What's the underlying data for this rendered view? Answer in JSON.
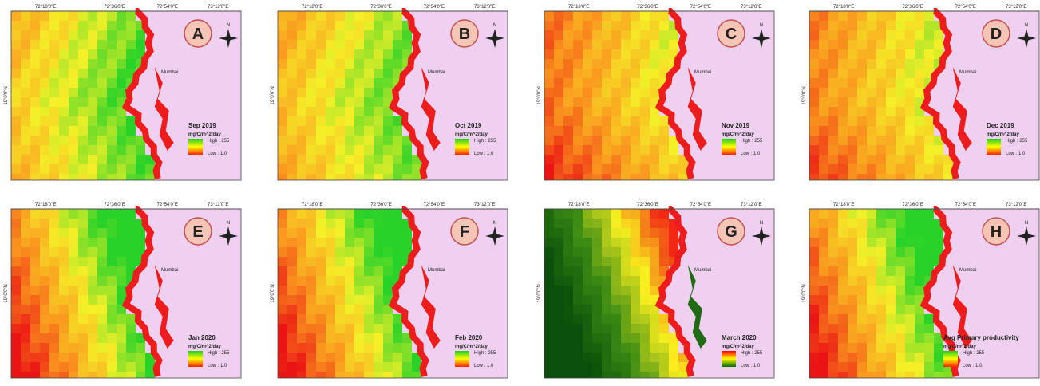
{
  "panels": [
    {
      "letter": "A",
      "title": "Sep 2019",
      "unit": "mg/C/m^2/day",
      "high": "High : 255",
      "low": "Low : 1.0",
      "city": "Mumbai",
      "north": "N",
      "lon_labels": [
        "72°18'0\"E",
        "72°36'0\"E",
        "72°54'0\"E",
        "73°12'0\"E"
      ],
      "lat_label": "19°0'0\"N"
    },
    {
      "letter": "B",
      "title": "Oct 2019",
      "unit": "mg/C/m^2/day",
      "high": "High : 255",
      "low": "Low : 1.0",
      "city": "Mumbai",
      "north": "N",
      "lon_labels": [
        "72°18'0\"E",
        "72°36'0\"E",
        "72°54'0\"E",
        "73°12'0\"E"
      ],
      "lat_label": "19°0'0\"N"
    },
    {
      "letter": "C",
      "title": "Nov 2019",
      "unit": "mg/C/m^2/day",
      "high": "High : 255",
      "low": "Low : 1.0",
      "city": "Mumbai",
      "north": "N",
      "lon_labels": [
        "72°18'0\"E",
        "72°36'0\"E",
        "72°54'0\"E",
        "73°12'0\"E"
      ],
      "lat_label": "19°0'0\"N"
    },
    {
      "letter": "D",
      "title": "Dec 2019",
      "unit": "mg/C/m^2/day",
      "high": "High : 255",
      "low": "Low : 1.0",
      "city": "Mumbai",
      "north": "N",
      "lon_labels": [
        "72°18'0\"E",
        "72°36'0\"E",
        "72°54'0\"E",
        "73°12'0\"E"
      ],
      "lat_label": "19°0'0\"N"
    },
    {
      "letter": "E",
      "title": "Jan 2020",
      "unit": "mg/C/m^2/day",
      "high": "High : 255",
      "low": "Low : 1.0",
      "city": "Mumbai",
      "north": "N",
      "lon_labels": [
        "72°18'0\"E",
        "72°36'0\"E",
        "72°54'0\"E",
        "73°12'0\"E"
      ],
      "lat_label": "19°0'0\"N"
    },
    {
      "letter": "F",
      "title": "Feb 2020",
      "unit": "mg/C/m^2/day",
      "high": "High : 255",
      "low": "Low : 1.0",
      "city": "Mumbai",
      "north": "N",
      "lon_labels": [
        "72°18'0\"E",
        "72°36'0\"E",
        "72°54'0\"E",
        "73°12'0\"E"
      ],
      "lat_label": "19°0'0\"N"
    },
    {
      "letter": "G",
      "title": "March 2020",
      "unit": "mg/C/m^2/day",
      "high": "High : 255",
      "low": "Low : 1.0",
      "city": "Mumbai",
      "north": "N",
      "lon_labels": [
        "72°18'0\"E",
        "72°36'0\"E",
        "72°54'0\"E",
        "73°12'0\"E"
      ],
      "lat_label": "19°0'0\"N"
    },
    {
      "letter": "H",
      "title": "Avg Primary productivity",
      "unit": "mg/C/m^2/day",
      "high": "High : 255",
      "low": "Low : 1.0",
      "city": "Mumbai",
      "north": "N",
      "lon_labels": [
        "72°18'0\"E",
        "72°36'0\"E",
        "72°54'0\"E",
        "73°12'0\"E"
      ],
      "lat_label": "19°0'0\"N"
    }
  ]
}
